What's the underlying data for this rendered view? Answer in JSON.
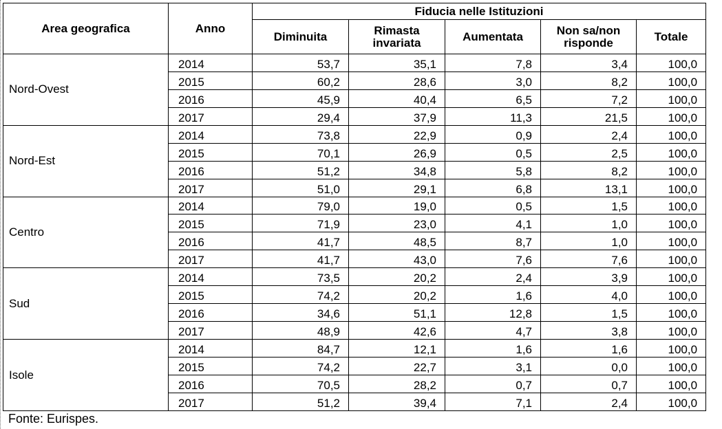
{
  "table": {
    "headers": {
      "area": "Area geografica",
      "anno": "Anno",
      "group": "Fiducia nelle Istituzioni",
      "cols": [
        "Diminuita",
        "Rimasta\ninvariata",
        "Aumentata",
        "Non sa/non\nrisponde",
        "Totale"
      ]
    },
    "areas": [
      {
        "name": "Nord-Ovest",
        "rows": [
          {
            "year": "2014",
            "values": [
              "53,7",
              "35,1",
              "7,8",
              "3,4",
              "100,0"
            ]
          },
          {
            "year": "2015",
            "values": [
              "60,2",
              "28,6",
              "3,0",
              "8,2",
              "100,0"
            ]
          },
          {
            "year": "2016",
            "values": [
              "45,9",
              "40,4",
              "6,5",
              "7,2",
              "100,0"
            ]
          },
          {
            "year": "2017",
            "values": [
              "29,4",
              "37,9",
              "11,3",
              "21,5",
              "100,0"
            ]
          }
        ]
      },
      {
        "name": "Nord-Est",
        "rows": [
          {
            "year": "2014",
            "values": [
              "73,8",
              "22,9",
              "0,9",
              "2,4",
              "100,0"
            ]
          },
          {
            "year": "2015",
            "values": [
              "70,1",
              "26,9",
              "0,5",
              "2,5",
              "100,0"
            ]
          },
          {
            "year": "2016",
            "values": [
              "51,2",
              "34,8",
              "5,8",
              "8,2",
              "100,0"
            ]
          },
          {
            "year": "2017",
            "values": [
              "51,0",
              "29,1",
              "6,8",
              "13,1",
              "100,0"
            ]
          }
        ]
      },
      {
        "name": "Centro",
        "rows": [
          {
            "year": "2014",
            "values": [
              "79,0",
              "19,0",
              "0,5",
              "1,5",
              "100,0"
            ]
          },
          {
            "year": "2015",
            "values": [
              "71,9",
              "23,0",
              "4,1",
              "1,0",
              "100,0"
            ]
          },
          {
            "year": "2016",
            "values": [
              "41,7",
              "48,5",
              "8,7",
              "1,0",
              "100,0"
            ]
          },
          {
            "year": "2017",
            "values": [
              "41,7",
              "43,0",
              "7,6",
              "7,6",
              "100,0"
            ]
          }
        ]
      },
      {
        "name": "Sud",
        "rows": [
          {
            "year": "2014",
            "values": [
              "73,5",
              "20,2",
              "2,4",
              "3,9",
              "100,0"
            ]
          },
          {
            "year": "2015",
            "values": [
              "74,2",
              "20,2",
              "1,6",
              "4,0",
              "100,0"
            ]
          },
          {
            "year": "2016",
            "values": [
              "34,6",
              "51,1",
              "12,8",
              "1,5",
              "100,0"
            ]
          },
          {
            "year": "2017",
            "values": [
              "48,9",
              "42,6",
              "4,7",
              "3,8",
              "100,0"
            ]
          }
        ]
      },
      {
        "name": "Isole",
        "rows": [
          {
            "year": "2014",
            "values": [
              "84,7",
              "12,1",
              "1,6",
              "1,6",
              "100,0"
            ]
          },
          {
            "year": "2015",
            "values": [
              "74,2",
              "22,7",
              "3,1",
              "0,0",
              "100,0"
            ]
          },
          {
            "year": "2016",
            "values": [
              "70,5",
              "28,2",
              "0,7",
              "0,7",
              "100,0"
            ]
          },
          {
            "year": "2017",
            "values": [
              "51,2",
              "39,4",
              "7,1",
              "2,4",
              "100,0"
            ]
          }
        ]
      }
    ]
  },
  "source": "Fonte: Eurispes."
}
